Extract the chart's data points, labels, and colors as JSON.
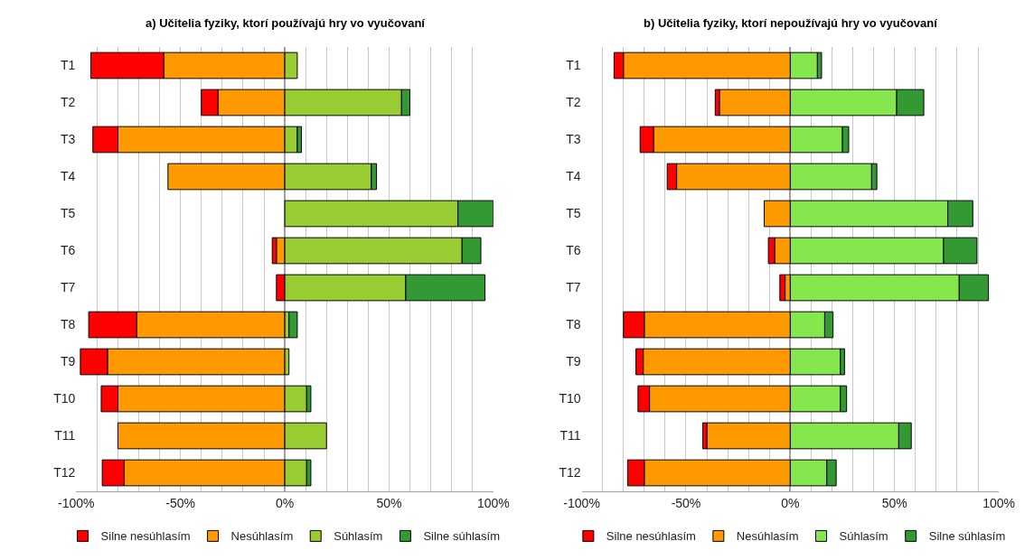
{
  "chart_data": [
    {
      "type": "bar",
      "orientation": "horizontal",
      "stacked": true,
      "title": "a) Učitelia fyziky, ktorí používajú hry vo vyučovaní",
      "categories": [
        "T1",
        "T2",
        "T3",
        "T4",
        "T5",
        "T6",
        "T7",
        "T8",
        "T9",
        "T10",
        "T11",
        "T12"
      ],
      "series": [
        {
          "name": "Nesúhlasím",
          "color": "#ff9900",
          "values": [
            -58,
            -32,
            -80,
            -56,
            null,
            -4,
            null,
            -71,
            -85,
            -80,
            -80,
            -77
          ]
        },
        {
          "name": "Silne nesúhlasím",
          "color": "#ff0000",
          "values": [
            -35,
            -8,
            -12,
            null,
            null,
            -2,
            -4,
            -23,
            -13,
            -8,
            null,
            -10.5
          ]
        },
        {
          "name": "Súhlasím",
          "color": "#99cc33",
          "values": [
            6,
            56,
            6,
            41.5,
            83,
            85,
            58,
            2,
            2,
            10.5,
            20,
            10.5
          ]
        },
        {
          "name": "Silne súhlasím",
          "color": "#339933",
          "values": [
            null,
            4,
            2,
            2.5,
            17,
            9,
            38,
            4,
            null,
            2,
            null,
            2
          ]
        }
      ],
      "xlim": [
        -100,
        100
      ],
      "xticks": [
        {
          "value": -100,
          "label": "-100%"
        },
        {
          "value": -90,
          "label": null
        },
        {
          "value": -80,
          "label": null
        },
        {
          "value": -70,
          "label": null
        },
        {
          "value": -60,
          "label": null
        },
        {
          "value": -50,
          "label": "-50%"
        },
        {
          "value": -40,
          "label": null
        },
        {
          "value": -30,
          "label": null
        },
        {
          "value": -20,
          "label": null
        },
        {
          "value": -10,
          "label": null
        },
        {
          "value": 0,
          "label": "0%"
        },
        {
          "value": 10,
          "label": null
        },
        {
          "value": 20,
          "label": null
        },
        {
          "value": 30,
          "label": null
        },
        {
          "value": 40,
          "label": null
        },
        {
          "value": 50,
          "label": "50%"
        },
        {
          "value": 60,
          "label": null
        },
        {
          "value": 70,
          "label": null
        },
        {
          "value": 80,
          "label": null
        },
        {
          "value": 90,
          "label": null
        },
        {
          "value": 100,
          "label": "100%"
        }
      ],
      "grid": "x",
      "legend": "bottom"
    },
    {
      "type": "bar",
      "orientation": "horizontal",
      "stacked": true,
      "title": "b) Učitelia fyziky, ktorí nepoužívajú hry vo vyučovaní",
      "categories": [
        "T1",
        "T2",
        "T3",
        "T4",
        "T5",
        "T6",
        "T7",
        "T8",
        "T9",
        "T10",
        "T11",
        "T12"
      ],
      "series": [
        {
          "name": "Nesúhlasím",
          "color": "#ff9900",
          "values": [
            -80,
            -34,
            -65.5,
            -54.5,
            -12.5,
            -7.5,
            -2.5,
            -70,
            -70.5,
            -67.5,
            -40,
            -70
          ]
        },
        {
          "name": "Silne nesúhlasím",
          "color": "#ff0000",
          "values": [
            -4.5,
            -2,
            -6.5,
            -4.5,
            null,
            -3,
            -2.5,
            -10,
            -3.5,
            -5.5,
            -2,
            -8
          ]
        },
        {
          "name": "Súhlasím",
          "color": "#85e64d",
          "values": [
            13,
            51,
            25,
            39,
            75.5,
            73.5,
            81,
            16.5,
            24,
            24,
            52,
            17.5
          ]
        },
        {
          "name": "Silne súhlasím",
          "color": "#339933",
          "values": [
            2,
            13,
            3,
            2.5,
            12,
            16,
            14,
            4,
            2,
            3,
            6,
            4.5
          ]
        }
      ],
      "xlim": [
        -100,
        100
      ],
      "xticks": [
        {
          "value": -100,
          "label": "-100%"
        },
        {
          "value": -90,
          "label": null
        },
        {
          "value": -80,
          "label": null
        },
        {
          "value": -70,
          "label": null
        },
        {
          "value": -60,
          "label": null
        },
        {
          "value": -50,
          "label": "-50%"
        },
        {
          "value": -40,
          "label": null
        },
        {
          "value": -30,
          "label": null
        },
        {
          "value": -20,
          "label": null
        },
        {
          "value": -10,
          "label": null
        },
        {
          "value": 0,
          "label": "0%"
        },
        {
          "value": 10,
          "label": null
        },
        {
          "value": 20,
          "label": null
        },
        {
          "value": 30,
          "label": null
        },
        {
          "value": 40,
          "label": null
        },
        {
          "value": 50,
          "label": "50%"
        },
        {
          "value": 60,
          "label": null
        },
        {
          "value": 70,
          "label": null
        },
        {
          "value": 80,
          "label": null
        },
        {
          "value": 90,
          "label": null
        },
        {
          "value": 100,
          "label": "100%"
        }
      ],
      "grid": "x",
      "legend": "bottom"
    }
  ]
}
